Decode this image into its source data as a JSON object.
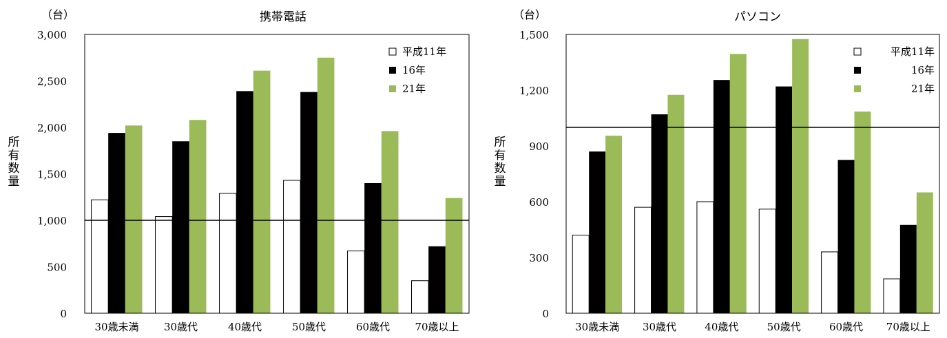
{
  "chart_data": [
    {
      "type": "bar",
      "title": "携帯電話",
      "unit_label": "（台）",
      "ylabel": "所有数量",
      "ylim": [
        0,
        3000
      ],
      "yticks": [
        "0",
        "500",
        "1,000",
        "1,500",
        "2,000",
        "2,500",
        "3,000"
      ],
      "ytick_values": [
        0,
        500,
        1000,
        1500,
        2000,
        2500,
        3000
      ],
      "reference_line": 1000,
      "categories": [
        "30歳未満",
        "30歳代",
        "40歳代",
        "50歳代",
        "60歳代",
        "70歳以上"
      ],
      "series": [
        {
          "name": "平成11年",
          "color": "#ffffff",
          "values": [
            1220,
            1040,
            1290,
            1430,
            670,
            350
          ]
        },
        {
          "name": "16年",
          "color": "#000000",
          "values": [
            1940,
            1850,
            2390,
            2380,
            1400,
            720
          ]
        },
        {
          "name": "21年",
          "color": "#9bbb59",
          "values": [
            2020,
            2080,
            2610,
            2750,
            1960,
            1240
          ]
        }
      ],
      "legend_position": "top-right",
      "grid": false
    },
    {
      "type": "bar",
      "title": "パソコン",
      "unit_label": "（台）",
      "ylabel": "所有数量",
      "ylim": [
        0,
        1500
      ],
      "yticks": [
        "0",
        "300",
        "600",
        "900",
        "1,200",
        "1,500"
      ],
      "ytick_values": [
        0,
        300,
        600,
        900,
        1200,
        1500
      ],
      "reference_line": 1000,
      "categories": [
        "30歳未満",
        "30歳代",
        "40歳代",
        "50歳代",
        "60歳代",
        "70歳以上"
      ],
      "series": [
        {
          "name": "平成11年",
          "color": "#ffffff",
          "values": [
            420,
            570,
            600,
            560,
            330,
            185
          ]
        },
        {
          "name": "16年",
          "color": "#000000",
          "values": [
            870,
            1070,
            1255,
            1220,
            825,
            475
          ]
        },
        {
          "name": "21年",
          "color": "#9bbb59",
          "values": [
            955,
            1175,
            1395,
            1475,
            1085,
            650
          ]
        }
      ],
      "legend_position": "top-right",
      "grid": false
    }
  ]
}
